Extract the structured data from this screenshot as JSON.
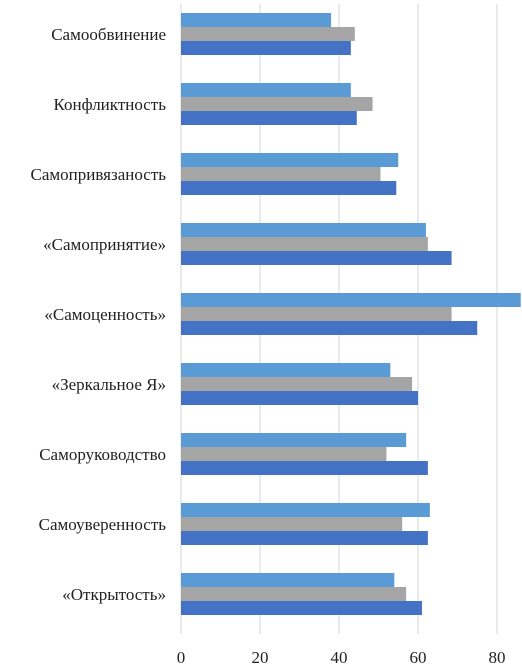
{
  "chart_data": {
    "type": "bar",
    "orientation": "horizontal",
    "title": "",
    "xlabel": "",
    "ylabel": "",
    "xlim": [
      0,
      85
    ],
    "x_ticks": [
      "0",
      "20",
      "40",
      "60",
      "80"
    ],
    "grid": true,
    "legend": "none",
    "categories": [
      "Самообвинение",
      "Конфликтность",
      "Самопривязаность",
      "«Самопринятие»",
      "«Самоценность»",
      "«Зеркальное Я»",
      "Саморуководство",
      "Самоуверенность",
      "«Открытость»"
    ],
    "series": [
      {
        "color": "#5b9bd5",
        "values": [
          38,
          43,
          55,
          62,
          86,
          53,
          57,
          63,
          54
        ]
      },
      {
        "color": "#a5a5a5",
        "values": [
          44,
          48.5,
          50.5,
          62.5,
          68.5,
          58.5,
          52,
          56,
          57
        ]
      },
      {
        "color": "#4472c4",
        "values": [
          43,
          44.5,
          54.5,
          68.5,
          75,
          60,
          62.5,
          62.5,
          61
        ]
      }
    ]
  }
}
